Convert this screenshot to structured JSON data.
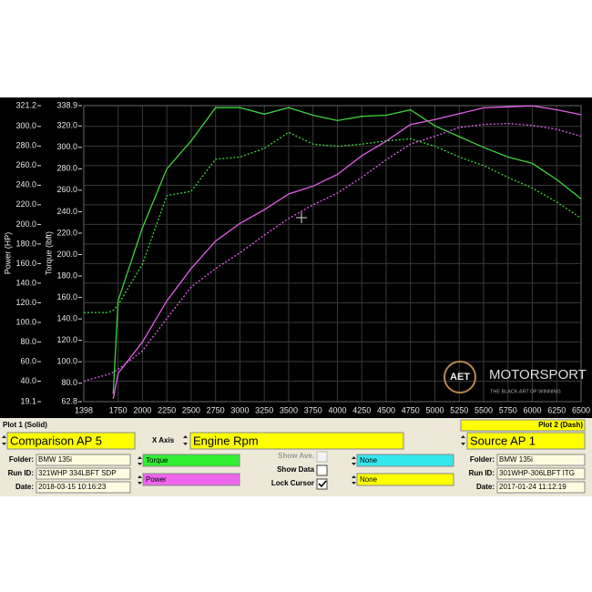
{
  "chart_data": {
    "type": "line",
    "y_label": "Power (HP)",
    "y2_label": "Torque (lbft)",
    "x": [
      1398,
      1650,
      1700,
      1750,
      2000,
      2250,
      2500,
      2750,
      3000,
      3250,
      3500,
      3750,
      4000,
      4250,
      4500,
      4750,
      5000,
      5250,
      5500,
      5750,
      6000,
      6250,
      6500
    ],
    "xlim": [
      1398,
      6500
    ],
    "xticks": [
      1398,
      1750,
      2000,
      2250,
      2500,
      2750,
      3000,
      3250,
      3500,
      3750,
      4000,
      4250,
      4500,
      4750,
      5000,
      5250,
      5500,
      5750,
      6000,
      6250,
      6500
    ],
    "ylim": [
      19.1,
      321.2
    ],
    "yticks": [
      321.2,
      {
        "value": 300,
        "label": "300.0"
      },
      {
        "value": 280,
        "label": "280.0"
      },
      {
        "value": 260,
        "label": "260.0"
      },
      {
        "value": 240,
        "label": "240.0"
      },
      {
        "value": 220,
        "label": "220.0"
      },
      {
        "value": 200,
        "label": "200.0"
      },
      {
        "value": 180,
        "label": "180.0"
      },
      {
        "value": 160,
        "label": "160.0"
      },
      {
        "value": 140,
        "label": "140.0"
      },
      {
        "value": 120,
        "label": "120.0"
      },
      {
        "value": 100,
        "label": "100.0"
      },
      {
        "value": 80,
        "label": "80.0"
      },
      {
        "value": 60,
        "label": "60.0"
      },
      {
        "value": 40,
        "label": "40.0"
      },
      19.1
    ],
    "y2lim": [
      62.8,
      338.9
    ],
    "y2ticks": [
      338.9,
      {
        "value": 320,
        "label": "320.0"
      },
      {
        "value": 300,
        "label": "300.0"
      },
      {
        "value": 280,
        "label": "280.0"
      },
      {
        "value": 260,
        "label": "260.0"
      },
      {
        "value": 240,
        "label": "240.0"
      },
      {
        "value": 220,
        "label": "220.0"
      },
      {
        "value": 200,
        "label": "200.0"
      },
      {
        "value": 180,
        "label": "180.0"
      },
      {
        "value": 160,
        "label": "160.0"
      },
      {
        "value": 140,
        "label": "140.0"
      },
      {
        "value": 120,
        "label": "120.0"
      },
      {
        "value": 100,
        "label": "100.0"
      },
      {
        "value": 80,
        "label": "80.0"
      },
      62.8
    ],
    "grid": true,
    "series": [
      {
        "color": "#3fd23f",
        "axis": "y2",
        "style": "solid",
        "values": [
          null,
          null,
          70,
          157,
          225,
          280,
          306,
          337,
          337,
          331,
          337,
          330,
          325,
          329,
          330,
          335,
          320,
          310,
          300,
          291,
          285,
          270,
          252
        ]
      },
      {
        "color": "#e060e8",
        "axis": "y",
        "style": "solid",
        "values": [
          null,
          null,
          22,
          48,
          80,
          122,
          155,
          183,
          201,
          215,
          231,
          239,
          251,
          270,
          285,
          302,
          307,
          313,
          319,
          320,
          321,
          317,
          312
        ]
      },
      {
        "color": "#3fd23f",
        "axis": "y2",
        "style": "dashed",
        "values": [
          146,
          146,
          148,
          153,
          191,
          255,
          259,
          289,
          291,
          299,
          314,
          303,
          301,
          303,
          306,
          308,
          301,
          291,
          283,
          272,
          262,
          249,
          234
        ]
      },
      {
        "color": "#e060e8",
        "axis": "y",
        "style": "dashed",
        "values": [
          40,
          47,
          49,
          52,
          71,
          104,
          136,
          155,
          171,
          189,
          206,
          220,
          232,
          248,
          266,
          282,
          290,
          299,
          302,
          303,
          301,
          297,
          290
        ]
      }
    ],
    "logo": {
      "mark": "AET",
      "name": "MOTORSPORT",
      "tagline": "THE BLACK ART OF WINNING"
    }
  },
  "panel": {
    "plot1": "Plot 1 (Solid)",
    "plot2": "Plot 2 (Dash)",
    "comparison": "Comparison AP 5",
    "x_axis_label": "X Axis",
    "x_axis_value": "Engine Rpm",
    "source": "Source AP 1",
    "left": {
      "folder_label": "Folder:",
      "folder": "BMW 135i",
      "run_label": "Run ID:",
      "run": "321WHP 334LBFT SDP",
      "date_label": "Date:",
      "date": "2018-03-15 10:16:23"
    },
    "right": {
      "folder_label": "Folder:",
      "folder": "BMW 135i",
      "run_label": "Run ID:",
      "run": "301WHP-306LBFT ITG",
      "date_label": "Date:",
      "date": "2017-01-24 11:12:19"
    },
    "channel1": "Torque",
    "channel2": "Power",
    "channel3": "None",
    "channel4": "None",
    "show_ave": "Show Ave.",
    "show_data": "Show Data",
    "lock_cursor": "Lock Cursor",
    "lock_cursor_checked": true
  }
}
